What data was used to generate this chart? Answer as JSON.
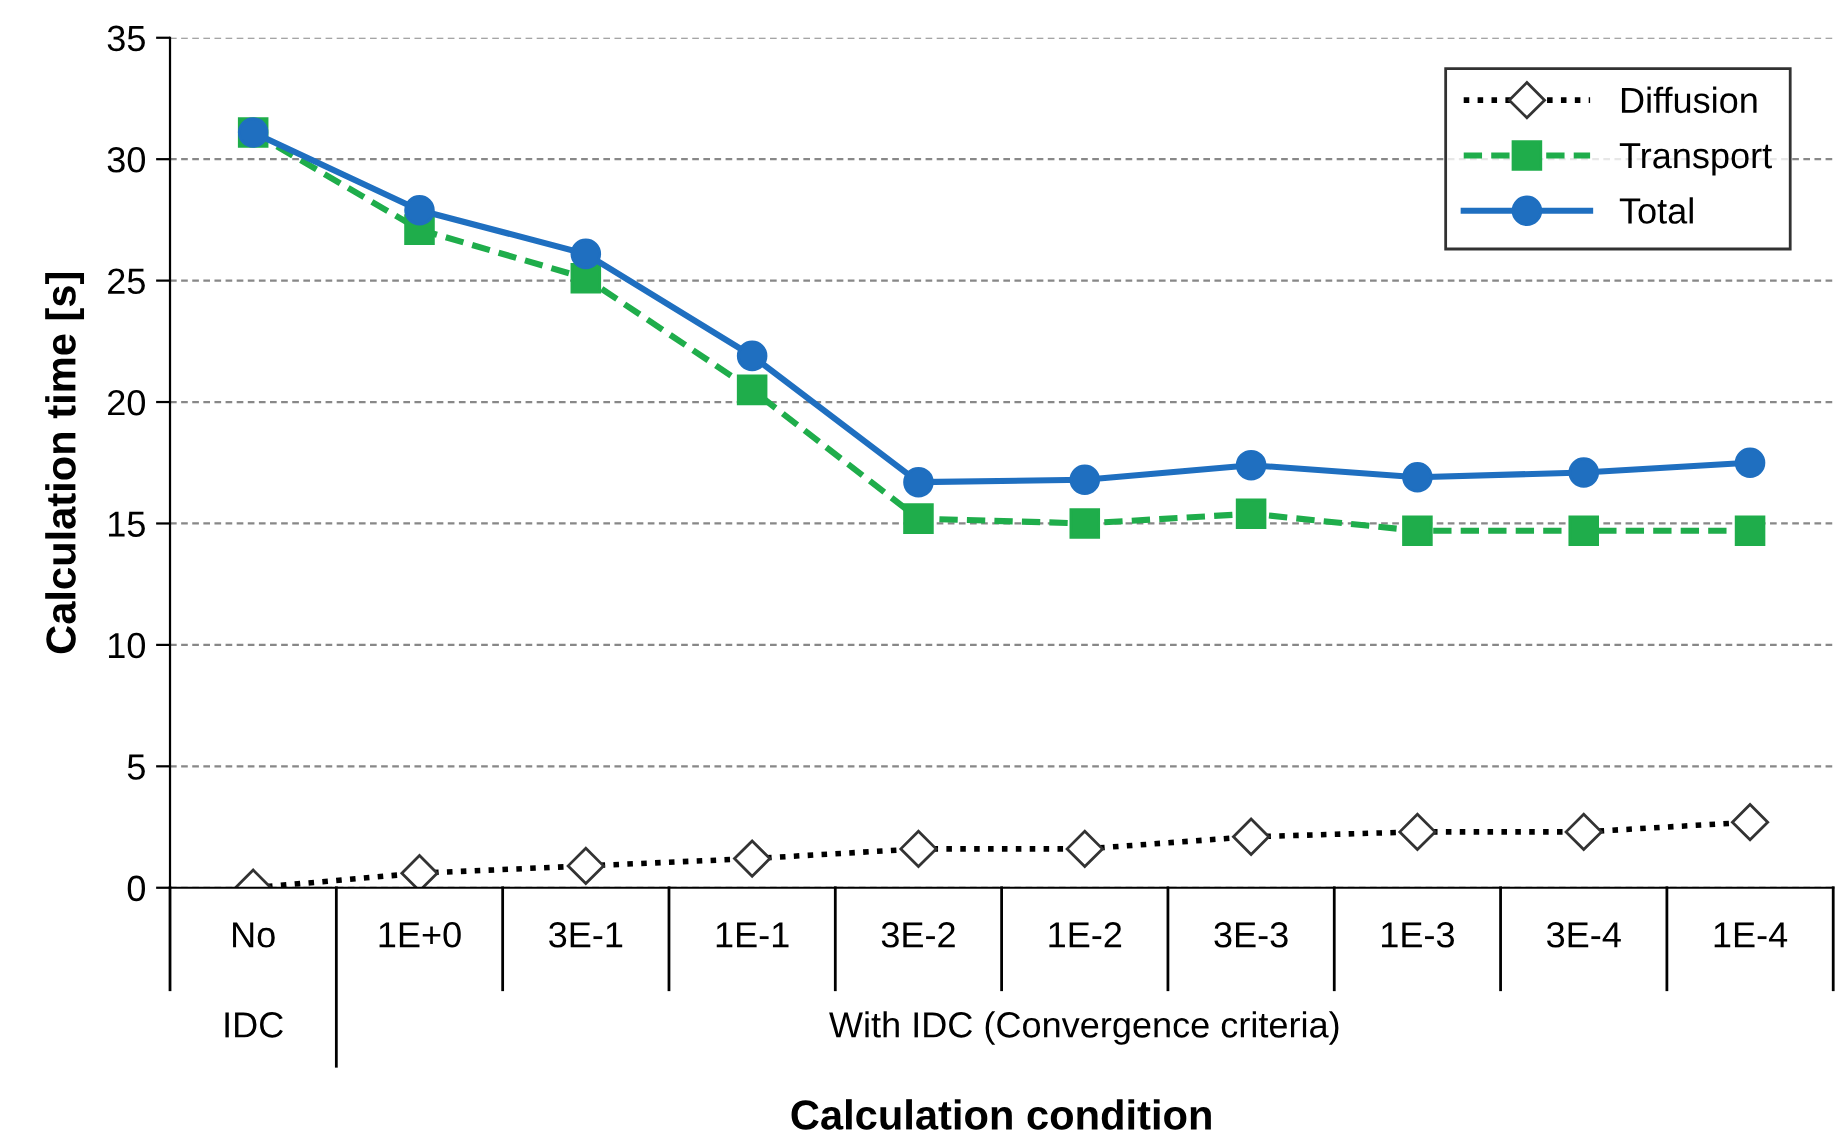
{
  "chart_data": {
    "type": "line",
    "xlabel": "Calculation condition",
    "ylabel": "Calculation time [s]",
    "categories": [
      "No",
      "1E+0",
      "3E-1",
      "1E-1",
      "3E-2",
      "1E-2",
      "3E-3",
      "1E-3",
      "3E-4",
      "1E-4"
    ],
    "series": [
      {
        "name": "Diffusion",
        "color": "#000000",
        "marker": "diamond",
        "line_style": "dotted",
        "values": [
          0.0,
          0.6,
          0.9,
          1.2,
          1.6,
          1.6,
          2.1,
          2.3,
          2.3,
          2.7
        ]
      },
      {
        "name": "Transport",
        "color": "#1fad4b",
        "marker": "square",
        "line_style": "dashed",
        "values": [
          31.1,
          27.1,
          25.1,
          20.5,
          15.2,
          15.0,
          15.4,
          14.7,
          14.7,
          14.7
        ]
      },
      {
        "name": "Total",
        "color": "#1f6fc0",
        "marker": "circle",
        "line_style": "solid",
        "values": [
          31.1,
          27.9,
          26.1,
          21.9,
          16.7,
          16.8,
          17.4,
          16.9,
          17.1,
          17.5
        ]
      }
    ],
    "annotations": [
      "IDC",
      "With IDC (Convergence criteria)"
    ],
    "ylim": [
      0,
      35
    ],
    "yticks": [
      0,
      5,
      10,
      15,
      20,
      25,
      30,
      35
    ],
    "grid": "y",
    "legend": "top right"
  }
}
